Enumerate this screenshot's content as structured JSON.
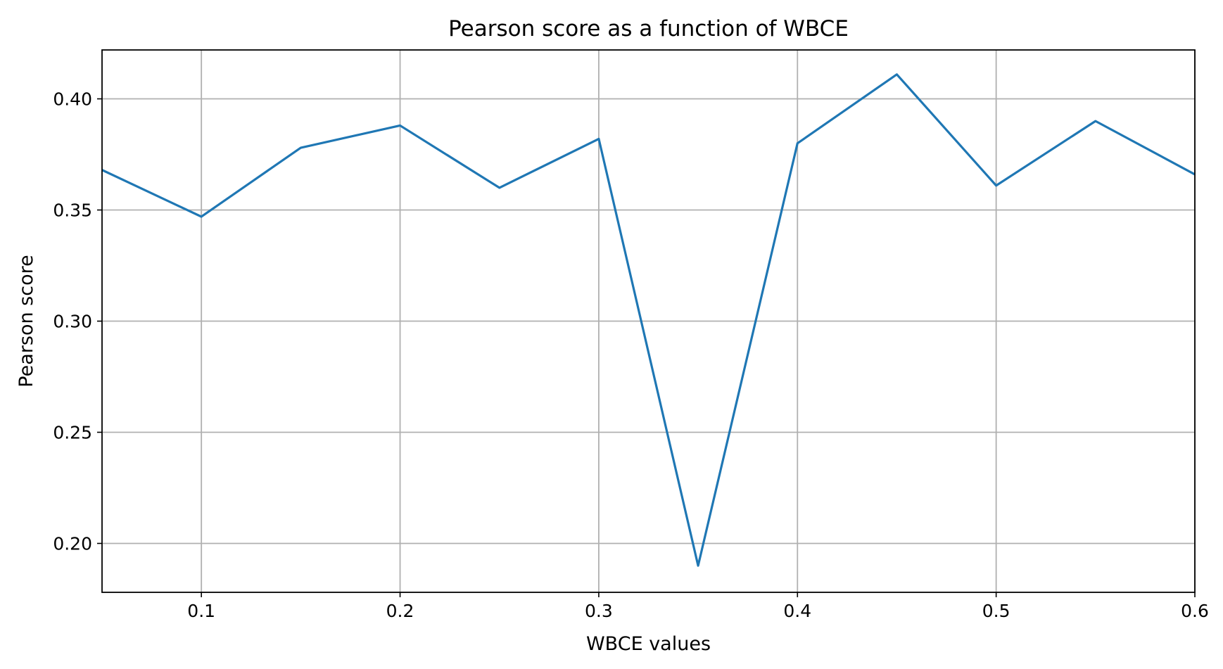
{
  "chart_data": {
    "type": "line",
    "title": "Pearson score as a function of WBCE",
    "xlabel": "WBCE values",
    "ylabel": "Pearson score",
    "xlim": [
      0.05,
      0.6
    ],
    "ylim": [
      0.178,
      0.422
    ],
    "x_ticks": [
      0.1,
      0.2,
      0.3,
      0.4,
      0.5,
      0.6
    ],
    "x_tick_labels": [
      "0.1",
      "0.2",
      "0.3",
      "0.4",
      "0.5",
      "0.6"
    ],
    "y_ticks": [
      0.2,
      0.25,
      0.3,
      0.35,
      0.4
    ],
    "y_tick_labels": [
      "0.20",
      "0.25",
      "0.30",
      "0.35",
      "0.40"
    ],
    "grid": true,
    "legend": "none",
    "x": [
      0.05,
      0.1,
      0.15,
      0.2,
      0.25,
      0.3,
      0.35,
      0.4,
      0.45,
      0.5,
      0.55,
      0.6
    ],
    "series": [
      {
        "values": [
          0.368,
          0.347,
          0.378,
          0.388,
          0.36,
          0.382,
          0.19,
          0.38,
          0.411,
          0.361,
          0.39,
          0.366
        ],
        "color": "#1f77b4"
      }
    ]
  }
}
